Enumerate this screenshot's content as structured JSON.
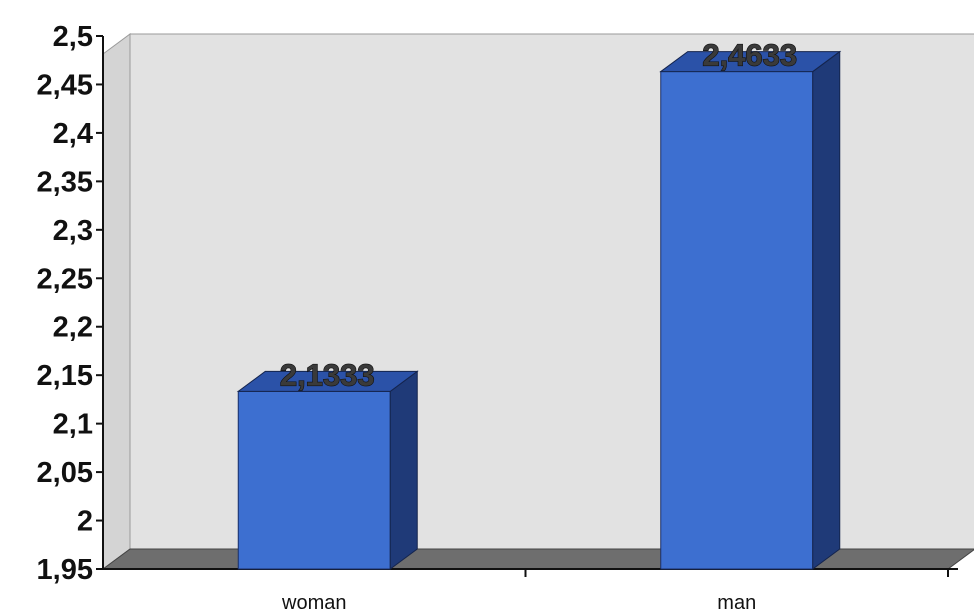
{
  "chart_data": {
    "type": "bar",
    "three_d": true,
    "categories": [
      "woman",
      "man"
    ],
    "series": [
      {
        "values": [
          2.1333,
          2.4633
        ],
        "data_labels": [
          "2,1333",
          "2,4633"
        ]
      }
    ],
    "ylim": [
      1.95,
      2.5
    ],
    "y_ticks": [
      1.95,
      2,
      2.05,
      2.1,
      2.15,
      2.2,
      2.25,
      2.3,
      2.35,
      2.4,
      2.45,
      2.5
    ],
    "y_tick_labels": [
      "1,95",
      "2",
      "2,05",
      "2,1",
      "2,15",
      "2,2",
      "2,25",
      "2,3",
      "2,35",
      "2,4",
      "2,45",
      "2,5"
    ],
    "title": "",
    "xlabel": "",
    "ylabel": "",
    "grid": false,
    "legend": "none",
    "colors": {
      "bar_front": "#3d6fd0",
      "bar_top": "#2b52a8",
      "bar_side": "#1f3a78",
      "wall": "#e2e2e2",
      "floor": "#6e6e6e",
      "axis": "#111111"
    }
  }
}
